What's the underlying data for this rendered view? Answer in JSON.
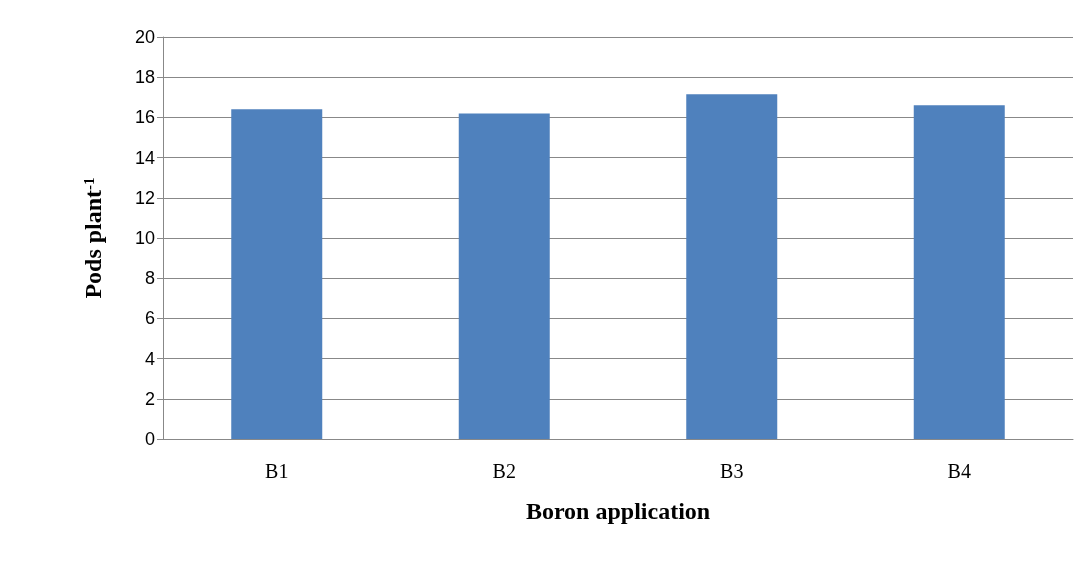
{
  "chart_data": {
    "type": "bar",
    "xlabel": "Boron application",
    "ylabel": "Pods plant$^{-1}$",
    "categories": [
      "B1",
      "B2",
      "B3",
      "B4"
    ],
    "values": [
      16.4,
      16.2,
      17.15,
      16.6
    ],
    "color": "#4f81bd",
    "ylim": [
      0,
      20
    ],
    "yticks": [
      0,
      2,
      4,
      6,
      8,
      10,
      12,
      14,
      16,
      18,
      20
    ],
    "grid": "y"
  }
}
